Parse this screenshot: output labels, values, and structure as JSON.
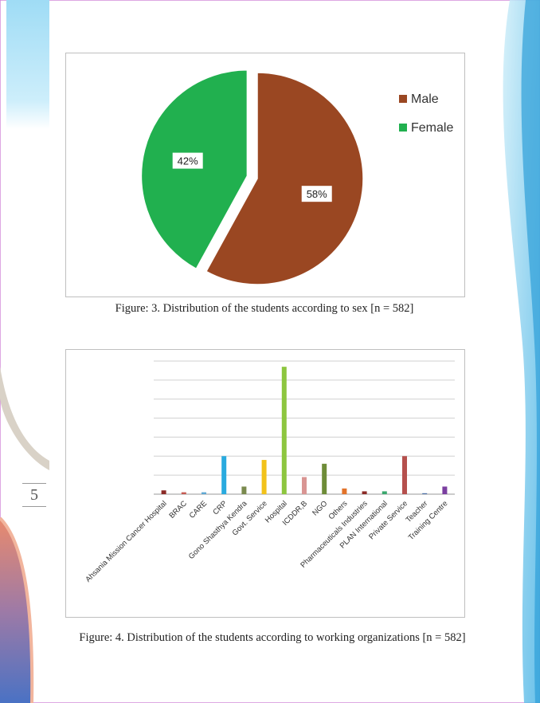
{
  "page": {
    "number": "5",
    "figure3_caption": "Figure: 3. Distribution of the students according to sex [n = 582]",
    "figure4_caption": "Figure: 4. Distribution of the students according to working organizations [n = 582]"
  },
  "chart_data": [
    {
      "type": "pie",
      "categories": [
        "Male",
        "Female"
      ],
      "values": [
        58,
        42
      ],
      "data_labels": [
        "58%",
        "42%"
      ],
      "colors": [
        "#9a4722",
        "#21b04f"
      ],
      "legend": "right",
      "exploded": "Female"
    },
    {
      "type": "bar",
      "categories": [
        "Ahsania Mission Cancer Hospital",
        "BRAC",
        "CARE",
        "CRP",
        "Gono Shasthya Kendra",
        "Govt. Service",
        "Hospital",
        "ICDDR,B",
        "NGO",
        "Others",
        "Pharmaceuticals Industries",
        "PLAN International",
        "Private Service",
        "Teacher",
        "Training Centre"
      ],
      "values": [
        2,
        1,
        1,
        20,
        4,
        18,
        67,
        9,
        16,
        3,
        1.5,
        1.5,
        20,
        0.5,
        4
      ],
      "colors": [
        "#8b2a26",
        "#c55a52",
        "#5fa8d3",
        "#29aadf",
        "#7a8a4e",
        "#f2c21a",
        "#8dc63f",
        "#d99593",
        "#6e8c38",
        "#e2732a",
        "#8b2a26",
        "#3aa76d",
        "#b5504d",
        "#4a6fa5",
        "#7b3fa0"
      ],
      "ylim": [
        0,
        70
      ],
      "grid": true
    }
  ]
}
